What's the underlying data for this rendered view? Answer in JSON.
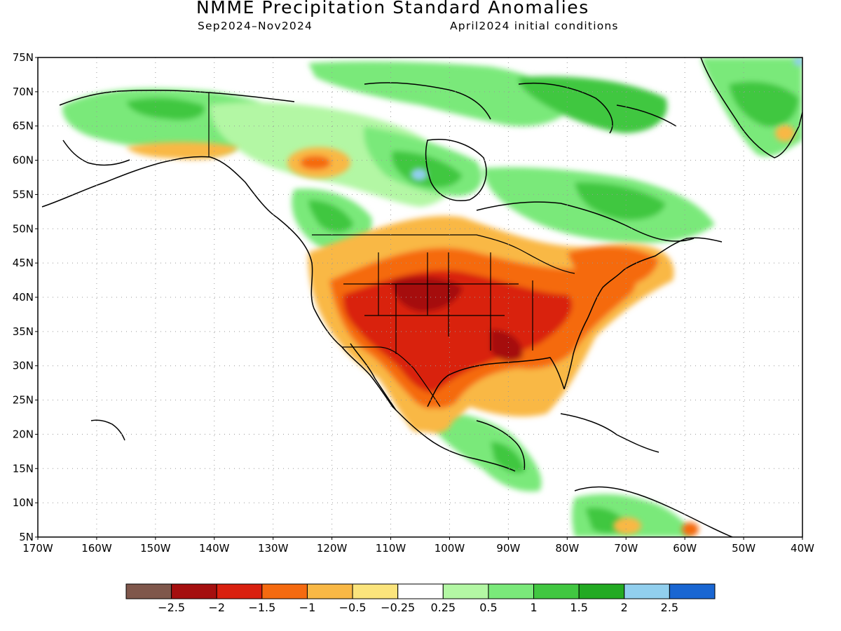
{
  "header": {
    "title": "NMME Precipitation Standard Anomalies",
    "period": "Sep2024–Nov2024",
    "init": "April2024 initial conditions"
  },
  "map": {
    "lon_range": [
      -170,
      -40
    ],
    "lat_range": [
      5,
      75
    ],
    "lat_ticks": [
      "5N",
      "10N",
      "15N",
      "20N",
      "25N",
      "30N",
      "35N",
      "40N",
      "45N",
      "50N",
      "55N",
      "60N",
      "65N",
      "70N",
      "75N"
    ],
    "lon_ticks": [
      "170W",
      "160W",
      "150W",
      "140W",
      "130W",
      "120W",
      "110W",
      "100W",
      "90W",
      "80W",
      "70W",
      "60W",
      "50W",
      "40W"
    ]
  },
  "colorbar": {
    "colors": [
      "#7f574b",
      "#a50f0f",
      "#d9200f",
      "#f56a10",
      "#f9b845",
      "#fbe47c",
      "#ffffff",
      "#b3f7a4",
      "#7ae97a",
      "#41c741",
      "#23aa23",
      "#91cfee",
      "#1966d2"
    ],
    "labels": [
      "−2.5",
      "−2",
      "−1.5",
      "−1",
      "−0.5",
      "−0.25",
      "0.25",
      "0.5",
      "1",
      "1.5",
      "2",
      "2.5"
    ]
  }
}
